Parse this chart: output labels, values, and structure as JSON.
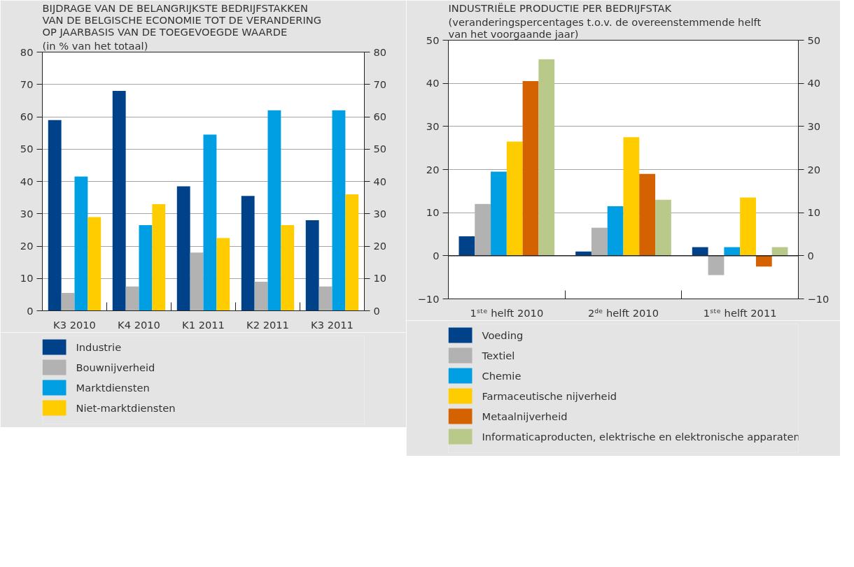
{
  "chart_data": [
    {
      "type": "bar",
      "title": "BIJDRAGE VAN DE BELANGRIJKSTE BEDRIJFSTAKKEN\nVAN DE BELGISCHE ECONOMIE TOT DE VERANDERING\nOP JAARBASIS VAN DE TOEGEVOEGDE WAARDE",
      "subtitle": "(in % van het totaal)",
      "categories": [
        "K3 2010",
        "K4 2010",
        "K1 2011",
        "K2 2011",
        "K3 2011"
      ],
      "series": [
        {
          "name": "Industrie",
          "color": "#00428a",
          "values": [
            59,
            68,
            38.5,
            35.5,
            28
          ]
        },
        {
          "name": "Bouwnijverheid",
          "color": "#b2b2b2",
          "values": [
            5.5,
            7.5,
            18,
            9,
            7.5
          ]
        },
        {
          "name": "Marktdiensten",
          "color": "#009fe3",
          "values": [
            41.5,
            26.5,
            54.5,
            62,
            62
          ]
        },
        {
          "name": "Niet-marktdiensten",
          "color": "#ffcc00",
          "values": [
            29,
            33,
            22.5,
            26.5,
            36
          ]
        }
      ],
      "ylim": [
        0,
        80
      ],
      "yticks": [
        0,
        10,
        20,
        30,
        40,
        50,
        60,
        70,
        80
      ],
      "y2lim": [
        0,
        80
      ],
      "y2ticks": [
        0,
        10,
        20,
        30,
        40,
        50,
        60,
        70,
        80
      ],
      "grid": "y",
      "legend": "bottom"
    },
    {
      "type": "bar",
      "title": "INDUSTRIËLE PRODUCTIE PER BEDRIJFSTAK",
      "subtitle": "(veranderingspercentages t.o.v. de overeenstemmende helft\nvan het voorgaande jaar)",
      "categories": [
        "1ˢᵗᵉ helft 2010",
        "2ᵈᵉ helft 2010",
        "1ˢᵗᵉ helft 2011"
      ],
      "series": [
        {
          "name": "Voeding",
          "color": "#00428a",
          "values": [
            4.5,
            1,
            2
          ]
        },
        {
          "name": "Textiel",
          "color": "#b2b2b2",
          "values": [
            12,
            6.5,
            -4.5
          ]
        },
        {
          "name": "Chemie",
          "color": "#009fe3",
          "values": [
            19.5,
            11.5,
            2
          ]
        },
        {
          "name": "Farmaceutische nijverheid",
          "color": "#ffcc00",
          "values": [
            26.5,
            27.5,
            13.5
          ]
        },
        {
          "name": "Metaalnijverheid",
          "color": "#d46200",
          "values": [
            40.5,
            19,
            -2.5
          ]
        },
        {
          "name": "Informaticaproducten, elektrische en elektronische apparaten",
          "color": "#b8c98a",
          "values": [
            45.6,
            13,
            2
          ]
        }
      ],
      "ylim": [
        -10,
        50
      ],
      "yticks": [
        -10,
        0,
        10,
        20,
        30,
        40,
        50
      ],
      "y2lim": [
        -10,
        50
      ],
      "y2ticks": [
        -10,
        0,
        10,
        20,
        30,
        40,
        50
      ],
      "grid": "y",
      "legend": "bottom"
    }
  ]
}
